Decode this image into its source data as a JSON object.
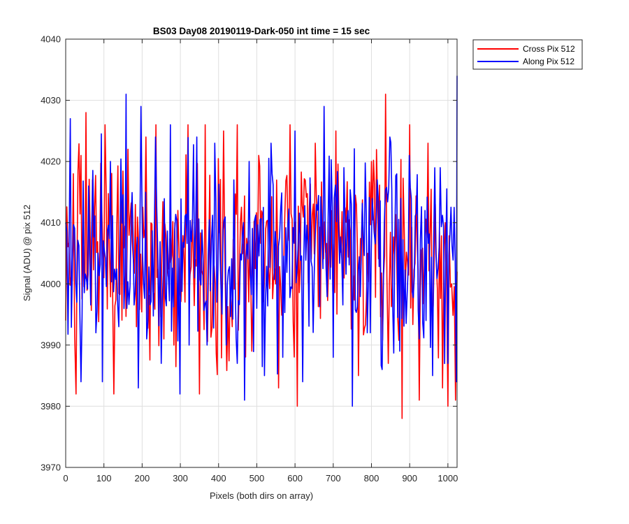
{
  "chart_data": {
    "type": "line",
    "title": "BS03 Day08 20190119-Dark-050 int time = 15 sec",
    "xlabel": "Pixels (both dirs on array)",
    "ylabel": "Signal (ADU) @ pix 512",
    "xlim": [
      0,
      1024
    ],
    "ylim": [
      3970,
      4040
    ],
    "xticks": [
      0,
      100,
      200,
      300,
      400,
      500,
      600,
      700,
      800,
      900,
      1000
    ],
    "yticks": [
      3970,
      3980,
      3990,
      4000,
      4010,
      4020,
      4030,
      4040
    ],
    "grid": true,
    "legend_position": "outside top-right",
    "series": [
      {
        "name": "Cross Pix 512",
        "color": "#ff0000",
        "x": [
          0,
          20,
          27,
          40,
          53,
          70,
          100,
          103,
          126,
          163,
          185,
          210,
          236,
          283,
          320,
          350,
          365,
          383,
          413,
          433,
          449,
          487,
          505,
          557,
          587,
          606,
          653,
          707,
          766,
          800,
          837,
          844,
          880,
          900,
          925,
          948,
          967,
          986,
          993,
          1000,
          1010,
          1020,
          1024
        ],
        "y": [
          3994,
          4018,
          3982,
          4021,
          4028,
          4017,
          4001,
          4026,
          3982,
          4022,
          3993,
          4024,
          4026,
          3990,
          4026,
          3982,
          4026,
          3993,
          4025,
          3997,
          4026,
          3989,
          4021,
          3983,
          4026,
          3980,
          4023,
          4025,
          3985,
          4020,
          4031,
          3987,
          3978,
          4026,
          3981,
          4023,
          4013,
          3983,
          4010,
          3980,
          4000,
          3981,
          4002
        ]
      },
      {
        "name": "Along Pix 512",
        "color": "#0000ff",
        "x": [
          0,
          12,
          29,
          40,
          60,
          79,
          96,
          117,
          139,
          158,
          160,
          190,
          197,
          201,
          212,
          235,
          250,
          274,
          299,
          323,
          343,
          370,
          390,
          420,
          440,
          449,
          468,
          480,
          500,
          520,
          540,
          568,
          600,
          620,
          653,
          676,
          700,
          728,
          750,
          789,
          815,
          828,
          848,
          874,
          899,
          925,
          940,
          960,
          980,
          1000,
          1019,
          1022,
          1024
        ],
        "y": [
          4010,
          4027,
          3997,
          3984,
          4016,
          3992,
          3984,
          4020,
          3993,
          4031,
          3996,
          3983,
          4029,
          4005,
          3991,
          4024,
          3987,
          4026,
          3982,
          3990,
          4024,
          3990,
          4023,
          3990,
          4017,
          3987,
          3981,
          4020,
          3996,
          3985,
          4018,
          3988,
          4025,
          3984,
          4008,
          4029,
          3988,
          4019,
          3980,
          3992,
          4017,
          3986,
          4024,
          3989,
          4021,
          3991,
          4012,
          3985,
          4019,
          3987,
          4004,
          3984,
          4034
        ]
      }
    ]
  }
}
